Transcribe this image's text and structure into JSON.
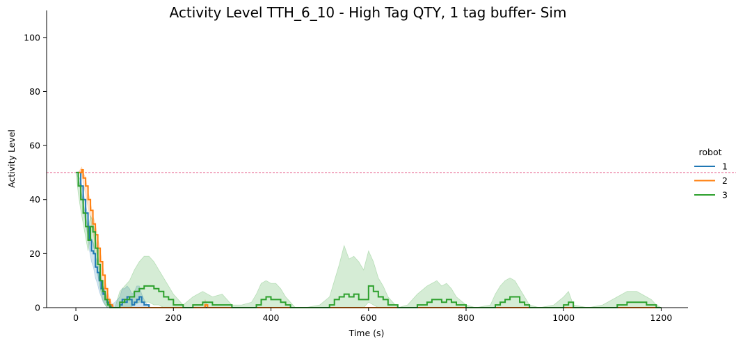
{
  "chart_data": {
    "type": "line",
    "title": "Activity Level TTH_6_10 - High Tag QTY, 1 tag buffer- Sim",
    "xlabel": "Time (s)",
    "ylabel": "Activity Level",
    "xlim": [
      -60,
      1255
    ],
    "ylim": [
      0,
      110
    ],
    "xticks": [
      0,
      200,
      400,
      600,
      800,
      1000,
      1200
    ],
    "yticks": [
      0,
      20,
      40,
      60,
      80,
      100
    ],
    "grid": false,
    "legend_title": "robot",
    "legend_position": "right",
    "reference_line": {
      "y": 50,
      "color": "#e8648f",
      "style": "dashed"
    },
    "series": [
      {
        "name": "1",
        "color": "#1f77b4",
        "x": [
          2,
          10,
          15,
          20,
          25,
          28,
          32,
          36,
          40,
          44,
          48,
          52,
          56,
          60,
          64,
          68,
          72,
          80,
          90,
          95,
          100,
          105,
          110,
          115,
          120,
          125,
          130,
          135,
          140,
          150,
          160,
          200,
          1200
        ],
        "y": [
          50,
          45,
          40,
          35,
          30,
          25,
          21,
          20,
          15,
          13,
          10,
          7,
          5,
          3,
          2,
          1,
          0,
          0,
          1,
          3,
          2,
          4,
          3,
          1,
          2,
          3,
          4,
          2,
          1,
          0,
          0,
          0,
          0
        ],
        "ci_lower": [
          50,
          43,
          37,
          31,
          26,
          21,
          17,
          15,
          11,
          9,
          6,
          4,
          2,
          1,
          0,
          0,
          0,
          0,
          0,
          0,
          0,
          0,
          0,
          0,
          0,
          0,
          0,
          0,
          0,
          0,
          0,
          0,
          0
        ],
        "ci_upper": [
          50,
          47,
          43,
          38,
          34,
          29,
          25,
          24,
          19,
          17,
          14,
          10,
          8,
          6,
          4,
          3,
          1,
          2,
          4,
          7,
          7,
          8,
          7,
          5,
          6,
          8,
          8,
          5,
          3,
          0,
          0,
          0,
          0
        ]
      },
      {
        "name": "2",
        "color": "#ff7f0e",
        "x": [
          5,
          12,
          15,
          20,
          25,
          30,
          35,
          40,
          45,
          50,
          55,
          60,
          65,
          70,
          75,
          80,
          100,
          200,
          262,
          265,
          270,
          400,
          1200
        ],
        "y": [
          50,
          51,
          48,
          45,
          40,
          36,
          31,
          27,
          22,
          17,
          12,
          7,
          3,
          1,
          0,
          0,
          0,
          0,
          0,
          1,
          0,
          0,
          0
        ],
        "ci_lower": [
          50,
          50,
          46,
          42,
          37,
          33,
          28,
          23,
          18,
          13,
          9,
          4,
          1,
          0,
          0,
          0,
          0,
          0,
          0,
          0,
          0,
          0,
          0
        ],
        "ci_upper": [
          50,
          52,
          50,
          48,
          43,
          39,
          34,
          31,
          26,
          21,
          16,
          10,
          6,
          3,
          1,
          0,
          0,
          0,
          0,
          3,
          0,
          0,
          0
        ]
      },
      {
        "name": "3",
        "color": "#2ca02c",
        "x": [
          0,
          5,
          10,
          15,
          20,
          25,
          30,
          35,
          40,
          45,
          50,
          55,
          60,
          65,
          70,
          75,
          80,
          90,
          100,
          110,
          120,
          130,
          140,
          150,
          160,
          170,
          180,
          190,
          200,
          220,
          240,
          260,
          280,
          300,
          320,
          340,
          360,
          370,
          380,
          390,
          400,
          410,
          420,
          430,
          440,
          450,
          460,
          470,
          500,
          520,
          530,
          540,
          550,
          560,
          570,
          580,
          590,
          600,
          610,
          620,
          630,
          640,
          660,
          680,
          700,
          720,
          730,
          740,
          750,
          760,
          770,
          780,
          800,
          820,
          850,
          860,
          870,
          880,
          890,
          900,
          910,
          920,
          930,
          950,
          980,
          1000,
          1010,
          1020,
          1050,
          1080,
          1110,
          1130,
          1150,
          1160,
          1170,
          1180,
          1190,
          1200
        ],
        "y": [
          50,
          45,
          40,
          35,
          30,
          25,
          30,
          28,
          22,
          16,
          10,
          6,
          3,
          1,
          0,
          0,
          0,
          2,
          3,
          4,
          6,
          7,
          8,
          8,
          7,
          6,
          4,
          3,
          1,
          0,
          1,
          2,
          1,
          1,
          0,
          0,
          0,
          1,
          3,
          4,
          3,
          3,
          2,
          1,
          0,
          0,
          0,
          0,
          0,
          1,
          3,
          4,
          5,
          4,
          5,
          3,
          3,
          8,
          6,
          4,
          3,
          1,
          0,
          0,
          1,
          2,
          3,
          3,
          2,
          3,
          2,
          1,
          0,
          0,
          0,
          1,
          2,
          3,
          4,
          4,
          2,
          1,
          0,
          0,
          0,
          1,
          2,
          0,
          0,
          0,
          1,
          2,
          2,
          2,
          1,
          1,
          0,
          0
        ],
        "ci_lower": [
          50,
          42,
          36,
          31,
          26,
          21,
          26,
          24,
          18,
          12,
          7,
          3,
          1,
          0,
          0,
          0,
          0,
          0,
          0,
          0,
          1,
          2,
          2,
          2,
          1,
          1,
          0,
          0,
          0,
          0,
          0,
          0,
          0,
          0,
          0,
          0,
          0,
          0,
          0,
          0,
          0,
          0,
          0,
          0,
          0,
          0,
          0,
          0,
          0,
          0,
          0,
          0,
          0,
          0,
          0,
          0,
          0,
          2,
          1,
          0,
          0,
          0,
          0,
          0,
          0,
          0,
          0,
          0,
          0,
          0,
          0,
          0,
          0,
          0,
          0,
          0,
          0,
          0,
          0,
          0,
          0,
          0,
          0,
          0,
          0,
          0,
          0,
          0,
          0,
          0,
          0,
          0,
          0,
          0,
          0,
          0,
          0,
          0
        ],
        "ci_upper": [
          50,
          48,
          44,
          39,
          34,
          29,
          34,
          32,
          26,
          20,
          13,
          9,
          5,
          3,
          1,
          0,
          0,
          6,
          8,
          10,
          14,
          17,
          19,
          19,
          17,
          14,
          11,
          8,
          5,
          1,
          4,
          6,
          4,
          5,
          1,
          1,
          2,
          5,
          9,
          10,
          9,
          9,
          7,
          4,
          2,
          0,
          0,
          0,
          1,
          4,
          10,
          16,
          23,
          18,
          19,
          17,
          14,
          21,
          17,
          11,
          8,
          4,
          0,
          1,
          5,
          8,
          9,
          10,
          8,
          9,
          7,
          4,
          1,
          0,
          1,
          5,
          8,
          10,
          11,
          10,
          7,
          4,
          1,
          0,
          1,
          4,
          6,
          1,
          0,
          1,
          4,
          6,
          6,
          5,
          4,
          3,
          1,
          0
        ]
      }
    ]
  }
}
